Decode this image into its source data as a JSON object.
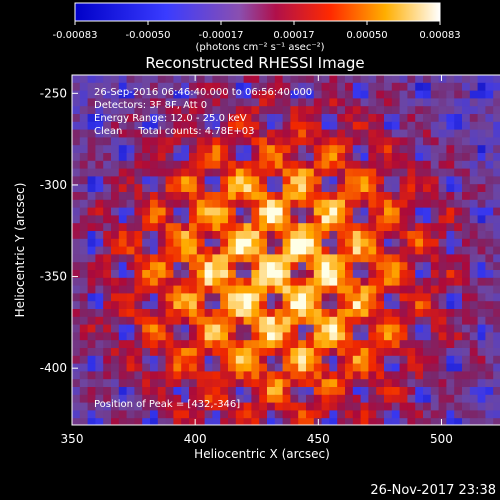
{
  "chart_data": {
    "type": "heatmap",
    "title": "Reconstructed RHESSI Image",
    "xlabel": "Heliocentric X (arcsec)",
    "ylabel": "Heliocentric Y (arcsec)",
    "xlim": [
      350,
      540
    ],
    "ylim": [
      -431,
      -240
    ],
    "x_ticks": [
      350,
      400,
      450,
      500
    ],
    "y_ticks": [
      -250,
      -300,
      -350,
      -400
    ],
    "colorbar": {
      "min": -0.00083,
      "max": 0.00083,
      "tick_labels": [
        "-0.00083",
        "-0.00050",
        "-0.00017",
        "0.00017",
        "0.00050",
        "0.00083"
      ],
      "unit_label": "(photons cm⁻² s⁻¹ asec⁻²)"
    },
    "annotations": [
      "26-Sep-2016 06:46:40.000 to 06:56:40.000",
      "Detectors: 3F 8F, Att 0",
      "Energy Range: 12.0 - 25.0 keV",
      "Clean     Total counts: 4.78E+03"
    ],
    "peak_label": "Position of Peak = [432,-346]",
    "peak": [
      432,
      -346
    ],
    "grid": false
  },
  "footer": {
    "timestamp": "26-Nov-2017 23:38"
  }
}
